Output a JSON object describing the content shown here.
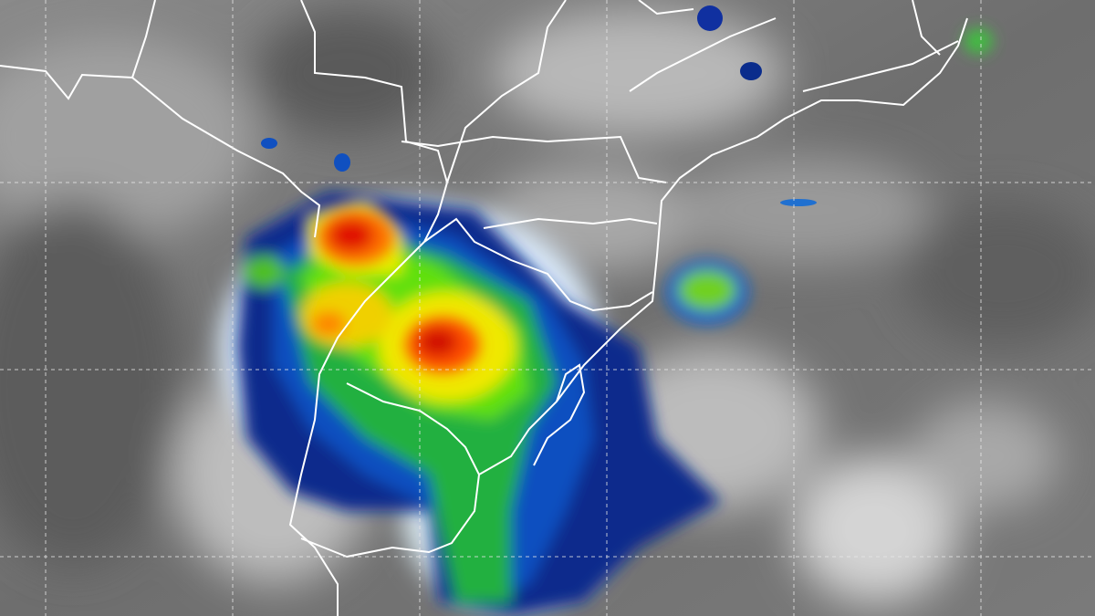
{
  "image": {
    "kind": "infrared satellite image",
    "colors": {
      "background_gray": "#6f6f6f",
      "cloud_light": "#d8d8d8",
      "borders": "#ffffff",
      "grid": "#e8e8e8",
      "enhancement_scale": [
        "#00d8ff",
        "#0040a0",
        "#00a030",
        "#40e000",
        "#e0f000",
        "#ff9000",
        "#ff2000",
        "#a00000"
      ]
    },
    "grid": {
      "visible": true,
      "style": "dashed"
    }
  }
}
